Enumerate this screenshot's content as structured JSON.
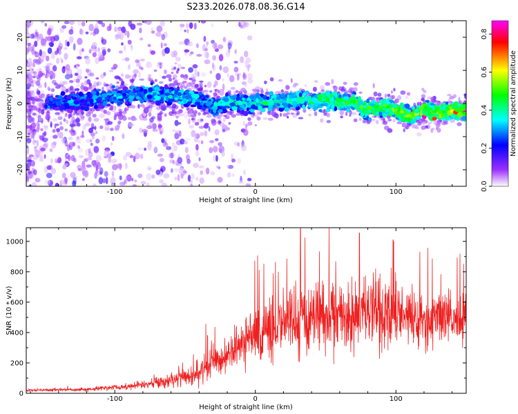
{
  "figure": {
    "title": "S233.2026.078.08.36.G14"
  },
  "chart_data": [
    {
      "type": "heatmap",
      "title": "S233.2026.078.08.36.G14",
      "xlabel": "Height of straight line (km)",
      "ylabel": "Frequency (Hz)",
      "xlim": [
        -163,
        150
      ],
      "ylim": [
        -25,
        25
      ],
      "xticks": [
        -100,
        0,
        100
      ],
      "yticks": [
        -20,
        -10,
        0,
        10,
        20
      ],
      "ridge": {
        "x": [
          -150,
          -120,
          -100,
          -80,
          -60,
          -40,
          -30,
          -20,
          0,
          20,
          30,
          50,
          70,
          80,
          90,
          100,
          110,
          120,
          130,
          140,
          150
        ],
        "frequency": [
          0,
          1,
          2,
          3,
          2.5,
          1,
          -1,
          0,
          0,
          0.5,
          1,
          1,
          0.5,
          -2,
          -1,
          -2,
          -4,
          -2,
          -3,
          -2,
          -2
        ]
      },
      "colorbar": {
        "label": "Normalized spectral amplitude",
        "range": [
          0,
          0.87
        ],
        "ticks": [
          0.0,
          0.2,
          0.4,
          0.6,
          0.8
        ],
        "colors": [
          "#ffffff",
          "#9b30ff",
          "#0000ff",
          "#00ffff",
          "#00ff00",
          "#ffff00",
          "#ff0000",
          "#ff00ff"
        ]
      }
    },
    {
      "type": "line",
      "xlabel": "Height of straight line (km)",
      "ylabel": "SNR (10 * v/v)",
      "xlim": [
        -163,
        150
      ],
      "ylim": [
        0,
        1090
      ],
      "xticks": [
        -100,
        0,
        100
      ],
      "yticks": [
        0,
        200,
        400,
        600,
        800,
        1000
      ],
      "line_color": "#ee2020",
      "envelope": {
        "x": [
          -163,
          -120,
          -90,
          -60,
          -40,
          -35,
          -30,
          -20,
          -10,
          0,
          10,
          20,
          30,
          40,
          60,
          80,
          100,
          120,
          150
        ],
        "mean": [
          20,
          25,
          45,
          80,
          140,
          180,
          200,
          260,
          320,
          380,
          420,
          460,
          480,
          500,
          510,
          520,
          520,
          500,
          490
        ],
        "amplitude": [
          10,
          15,
          30,
          60,
          100,
          150,
          120,
          160,
          200,
          230,
          260,
          280,
          300,
          320,
          300,
          300,
          280,
          260,
          220
        ]
      },
      "peaks": [
        {
          "x": -34,
          "y": 380
        },
        {
          "x": 32,
          "y": 1085
        },
        {
          "x": 74,
          "y": 1055
        },
        {
          "x": 98,
          "y": 1010
        }
      ]
    }
  ]
}
